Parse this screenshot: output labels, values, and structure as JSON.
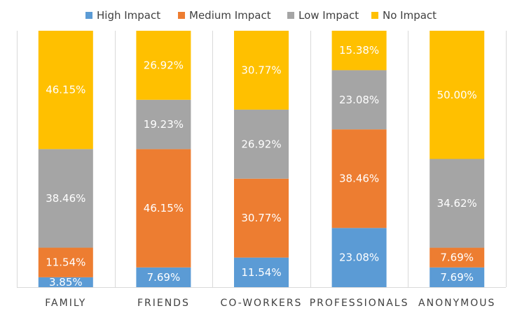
{
  "chart_data": {
    "type": "bar",
    "stacked": true,
    "normalized": true,
    "categories": [
      "FAMILY",
      "FRIENDS",
      "CO-WORKERS",
      "PROFESSIONALS",
      "ANONYMOUS"
    ],
    "series": [
      {
        "name": "High Impact",
        "color": "#5B9BD5",
        "values": [
          3.85,
          7.69,
          11.54,
          23.08,
          7.69
        ],
        "labels": [
          "3.85%",
          "7.69%",
          "11.54%",
          "23.08%",
          "7.69%"
        ]
      },
      {
        "name": "Medium Impact",
        "color": "#ED7D31",
        "values": [
          11.54,
          46.15,
          30.77,
          38.46,
          7.69
        ],
        "labels": [
          "11.54%",
          "46.15%",
          "30.77%",
          "38.46%",
          "7.69%"
        ]
      },
      {
        "name": "Low Impact",
        "color": "#A5A5A5",
        "values": [
          38.46,
          19.23,
          26.92,
          23.08,
          34.62
        ],
        "labels": [
          "38.46%",
          "19.23%",
          "26.92%",
          "23.08%",
          "34.62%"
        ]
      },
      {
        "name": "No Impact",
        "color": "#FFC000",
        "values": [
          46.15,
          26.92,
          30.77,
          15.38,
          50.0
        ],
        "labels": [
          "46.15%",
          "26.92%",
          "30.77%",
          "15.38%",
          "50.00%"
        ]
      }
    ],
    "ylim": [
      0,
      100
    ],
    "grid": false,
    "legend": "top"
  }
}
